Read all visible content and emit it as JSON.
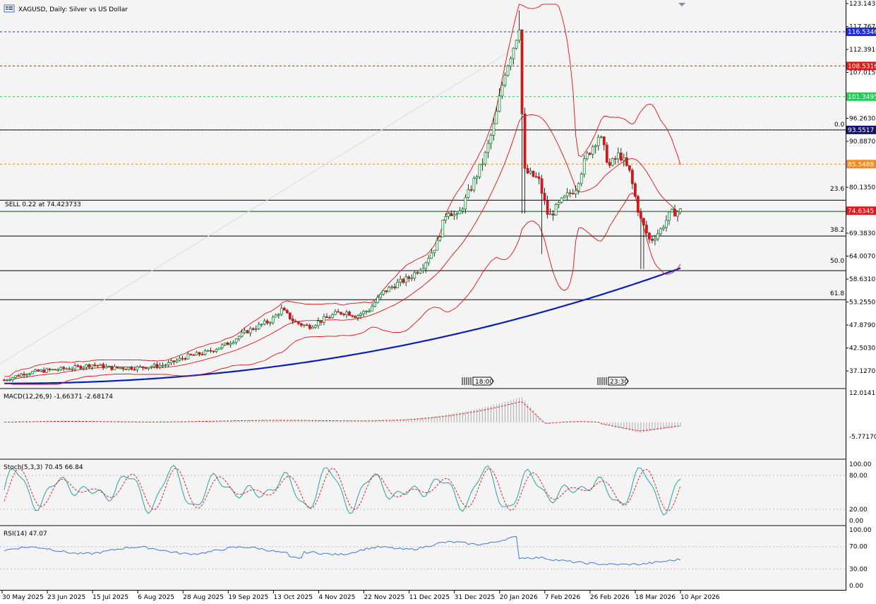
{
  "window": {
    "title": "XAGUSD, Daily:  Silver vs US Dollar",
    "menu_icon": "window-menu-icon"
  },
  "colors": {
    "panel_bg": "#f4f4f4",
    "bull": "#0b8a2e",
    "bear": "#cc1a1a",
    "ma": "#0a1fb8",
    "bands": "#e01010",
    "hline": "#000000",
    "trade": "#2aa12a",
    "level_blue": "#1f2bd4",
    "level_red": "#e01818",
    "level_green": "#22cc55",
    "level_navy": "#14146e",
    "level_orange": "#f08a1c",
    "price_tag": "#e8161b"
  },
  "main": {
    "trade_label": "SELL 0.22 at 74.423733",
    "time_marker_1": "18:00",
    "time_marker_2": "23:30",
    "fib_labels": [
      "0.0",
      "23.6",
      "38.2",
      "50.0",
      "61.8"
    ],
    "price_ticks": [
      "123.1430",
      "117.7670",
      "112.3910",
      "107.0150",
      "101.6390",
      "96.2630",
      "90.8870",
      "85.5110",
      "80.1350",
      "74.7590",
      "69.3830",
      "64.0070",
      "58.6310",
      "53.2550",
      "47.8790",
      "42.5030",
      "37.1270"
    ],
    "level_tags": [
      {
        "label": "116.5346",
        "kind": "blue"
      },
      {
        "label": "108.5316",
        "kind": "red"
      },
      {
        "label": "101.3495",
        "kind": "green"
      },
      {
        "label": "93.5517",
        "kind": "navy"
      },
      {
        "label": "85.5488",
        "kind": "orange"
      },
      {
        "label": "74.6345",
        "kind": "price"
      }
    ]
  },
  "macd": {
    "label": "MACD(12,26,9) -1.66371 -2.68174",
    "ticks": [
      "12.01416",
      "-5.77170"
    ]
  },
  "stoch": {
    "label": "Stoch(5,3,3) 70.45 66.84",
    "ticks": [
      "100.00",
      "80.00",
      "20.00",
      "0.00"
    ],
    "levels": [
      80,
      20
    ]
  },
  "rsi": {
    "label": "RSI(14) 47.07",
    "ticks": [
      "100.00",
      "70.00",
      "30.00",
      "0.00"
    ],
    "levels": [
      70,
      30
    ]
  },
  "time_axis": [
    "30 May 2025",
    "23 Jun 2025",
    "15 Jul 2025",
    "6 Aug 2025",
    "28 Aug 2025",
    "19 Sep 2025",
    "13 Oct 2025",
    "4 Nov 2025",
    "22 Nov 2025",
    "11 Dec 2025",
    "31 Dec 2025",
    "20 Jan 2026",
    "7 Feb 2026",
    "26 Feb 2026",
    "18 Mar 2026",
    "10 Apr 2026"
  ],
  "chart_data": {
    "type": "candlestick",
    "symbol": "XAGUSD",
    "timeframe": "Daily",
    "title": "XAGUSD, Daily:  Silver vs US Dollar",
    "ylim": [
      33.5,
      123.143
    ],
    "x": [
      "30 May 2025",
      "23 Jun 2025",
      "15 Jul 2025",
      "6 Aug 2025",
      "28 Aug 2025",
      "19 Sep 2025",
      "13 Oct 2025",
      "4 Nov 2025",
      "22 Nov 2025",
      "11 Dec 2025",
      "31 Dec 2025",
      "20 Jan 2026",
      "7 Feb 2026",
      "26 Feb 2026",
      "18 Mar 2026",
      "10 Apr 2026"
    ],
    "close": [
      35.0,
      36.5,
      37.8,
      37.9,
      40.1,
      43.0,
      51.5,
      48.5,
      50.5,
      57.5,
      72.0,
      112.0,
      78.0,
      88.0,
      70.0,
      74.6
    ],
    "current_price": 74.6345,
    "sell_price": 74.423733,
    "horizontal_levels": [
      116.5346,
      108.5316,
      101.3495,
      93.5517,
      85.5488
    ],
    "fib_levels": [
      {
        "label": "0.0",
        "price": 93.5517
      },
      {
        "label": "23.6",
        "price": 77.1
      },
      {
        "label": "38.2",
        "price": 68.7
      },
      {
        "label": "50.0",
        "price": 60.6
      },
      {
        "label": "61.8",
        "price": 53.8
      }
    ],
    "indicators": {
      "macd": {
        "params": "12,26,9",
        "main": -1.66371,
        "signal": -2.68174,
        "ylim": [
          -5.7717,
          12.01416
        ]
      },
      "stoch": {
        "params": "5,3,3",
        "k": 70.45,
        "d": 66.84,
        "levels": [
          80,
          20
        ]
      },
      "rsi": {
        "params": "14",
        "value": 47.07,
        "levels": [
          70,
          30
        ]
      }
    }
  }
}
